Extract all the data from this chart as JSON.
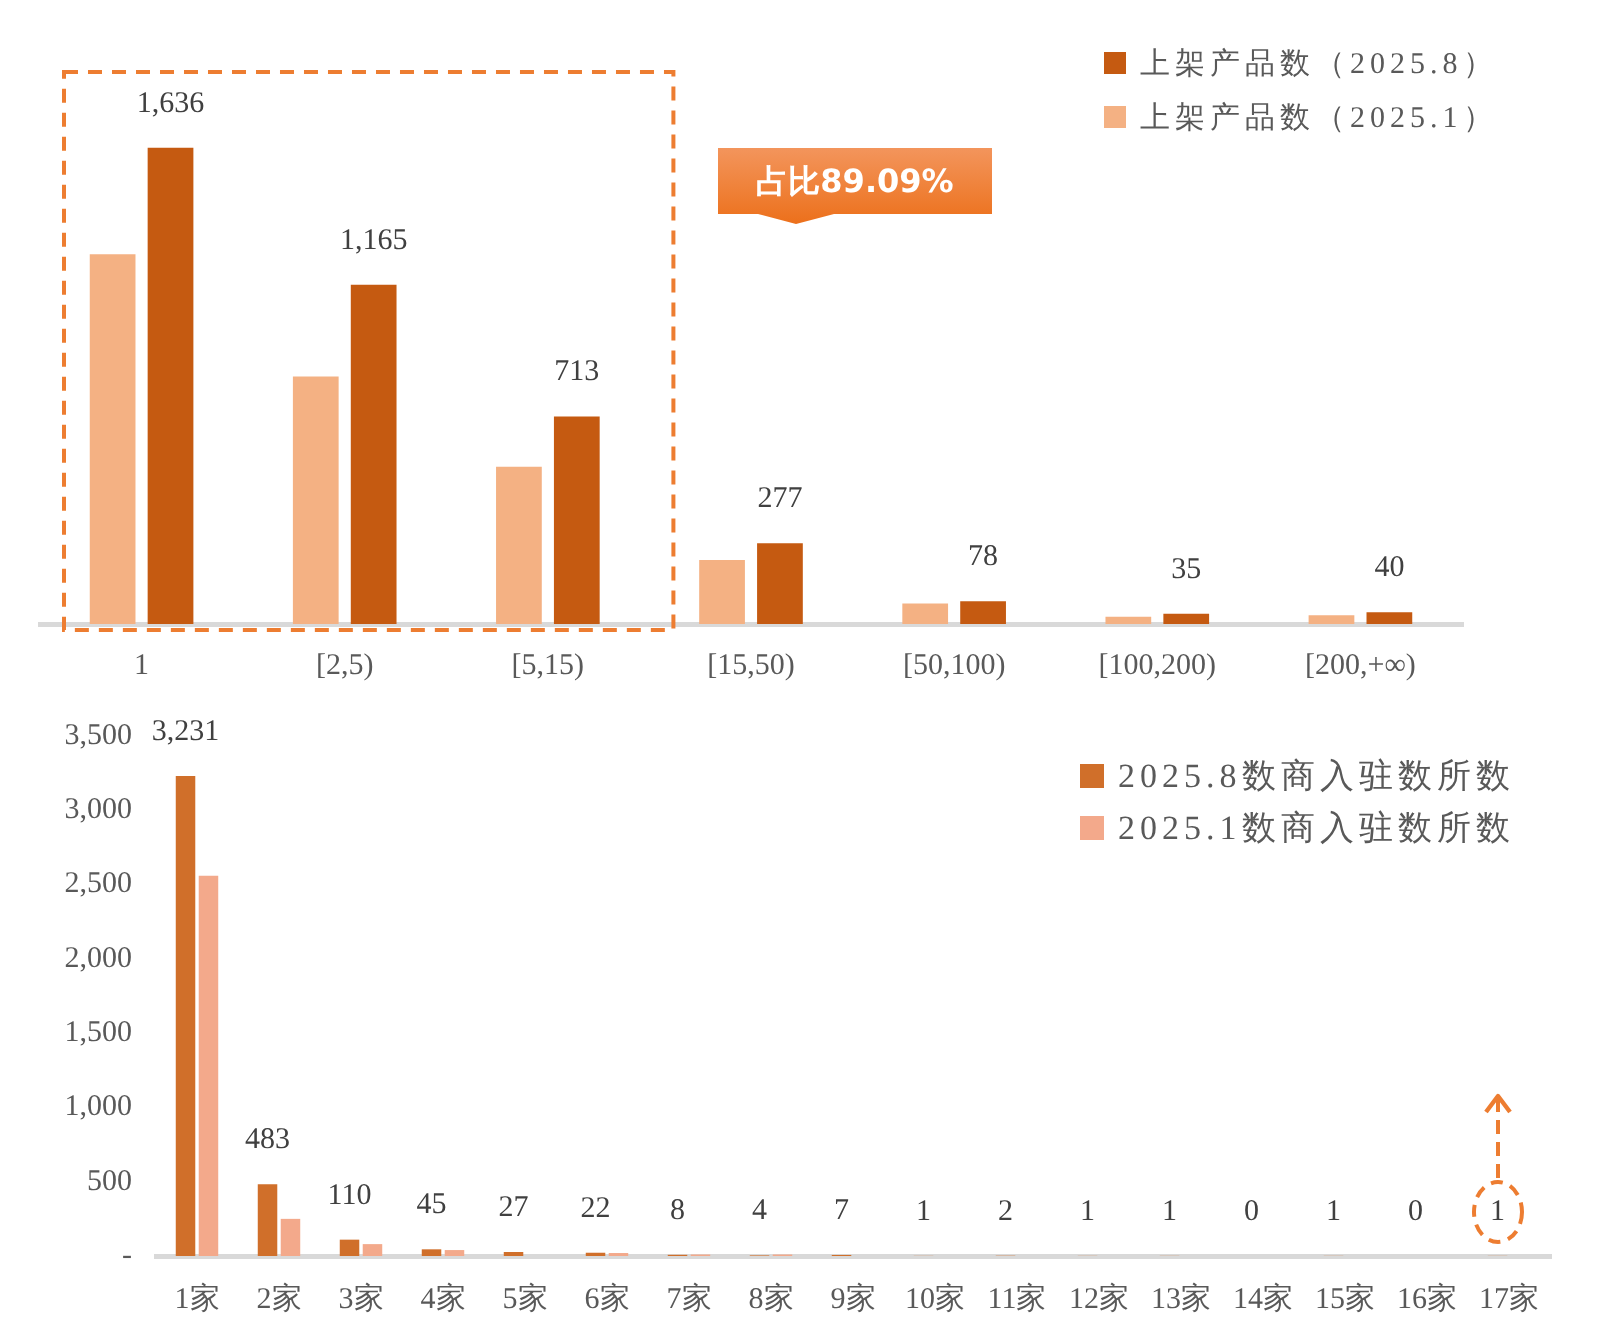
{
  "chart_data": [
    {
      "type": "bar",
      "categories": [
        "1",
        "[2,5)",
        "[5,15)",
        "[15,50)",
        "[50,100)",
        "[100,200)",
        "[200,+∞)"
      ],
      "series": [
        {
          "name": "上架产品数（2025.1）",
          "color": "#f4b183",
          "values": [
            1270,
            850,
            540,
            220,
            70,
            25,
            30
          ]
        },
        {
          "name": "上架产品数（2025.8）",
          "color": "#c55a11",
          "values": [
            1636,
            1165,
            713,
            277,
            78,
            35,
            40
          ],
          "value_labels": [
            "1,636",
            "1,165",
            "713",
            "277",
            "78",
            "35",
            "40"
          ]
        }
      ],
      "tick_labels": "x",
      "legend": "top right",
      "annotations": [
        "占比89.09%"
      ]
    },
    {
      "type": "bar",
      "categories": [
        "1家",
        "2家",
        "3家",
        "4家",
        "5家",
        "6家",
        "7家",
        "8家",
        "9家",
        "10家",
        "11家",
        "12家",
        "13家",
        "14家",
        "15家",
        "16家",
        "17家"
      ],
      "series": [
        {
          "name": "2025.8数商入驻数所数",
          "color": "#d06f2a",
          "values": [
            3231,
            483,
            110,
            45,
            27,
            22,
            8,
            4,
            7,
            1,
            2,
            1,
            1,
            0,
            1,
            0,
            1
          ],
          "value_labels": [
            "3,231",
            "483",
            "110",
            "45",
            "27",
            "22",
            "8",
            "4",
            "7",
            "1",
            "2",
            "1",
            "1",
            "0",
            "1",
            "0",
            "1"
          ]
        },
        {
          "name": "2025.1数商入驻数所数",
          "color": "#f3a98b",
          "values": [
            2560,
            250,
            80,
            40,
            0,
            20,
            10,
            10,
            0,
            0,
            0,
            0,
            0,
            0,
            0,
            0,
            0
          ]
        }
      ],
      "ylim": [
        0,
        3500
      ],
      "yticks": [
        {
          "value": 0,
          "label": "-"
        },
        500,
        {
          "value": 1000,
          "label": "1,000"
        },
        {
          "value": 1500,
          "label": "1,500"
        },
        {
          "value": 2000,
          "label": "2,000"
        },
        {
          "value": 2500,
          "label": "2,500"
        },
        {
          "value": 3000,
          "label": "3,000"
        },
        {
          "value": 3500,
          "label": "3,500"
        }
      ],
      "legend": "top right"
    }
  ]
}
